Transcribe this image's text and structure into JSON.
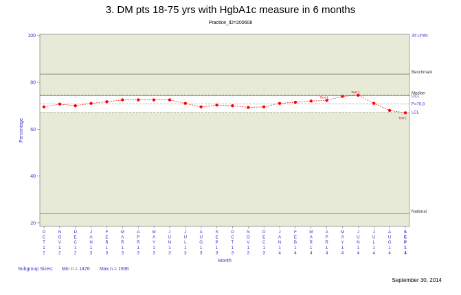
{
  "title": "3. DM pts 18-75 yrs with HgbA1c measure in 6 months",
  "subtitle": "Practice_ID=200608",
  "footer": {
    "subgroup_label": "Subgroup Sizes:",
    "min_n": "Min n = 1476",
    "max_n": "Max n = 1936",
    "date": "September 30, 2014"
  },
  "colors": {
    "band": "#e6ead6",
    "axis_text": "#3333cc",
    "point": "#ff0000",
    "line": "#ff0000",
    "ref_line": "#808080"
  },
  "chart_data": {
    "type": "line",
    "xlabel": "Month",
    "ylabel": "Percentage",
    "ylim": [
      20,
      100
    ],
    "yticks": [
      20,
      40,
      60,
      80,
      100
    ],
    "categories": [
      "OCT12",
      "NOV12",
      "DEC12",
      "JAN13",
      "FEB13",
      "MAR13",
      "APR13",
      "MAY13",
      "JUN13",
      "JUL13",
      "AUG13",
      "SEP13",
      "OCT13",
      "NOV13",
      "DEC13",
      "JAN14",
      "FEB14",
      "MAR14",
      "APR14",
      "MAY14",
      "JUN14",
      "JUL14",
      "AUG14",
      "SEP14"
    ],
    "tick_labels": [
      [
        "O",
        "C",
        "T",
        "1",
        "2"
      ],
      [
        "N",
        "O",
        "V",
        "1",
        "2"
      ],
      [
        "D",
        "E",
        "C",
        "1",
        "2"
      ],
      [
        "J",
        "A",
        "N",
        "1",
        "3"
      ],
      [
        "F",
        "E",
        "B",
        "1",
        "3"
      ],
      [
        "M",
        "A",
        "R",
        "1",
        "3"
      ],
      [
        "A",
        "P",
        "R",
        "1",
        "3"
      ],
      [
        "M",
        "A",
        "Y",
        "1",
        "3"
      ],
      [
        "J",
        "U",
        "N",
        "1",
        "3"
      ],
      [
        "J",
        "U",
        "L",
        "1",
        "3"
      ],
      [
        "A",
        "U",
        "G",
        "1",
        "3"
      ],
      [
        "S",
        "E",
        "P",
        "1",
        "3"
      ],
      [
        "O",
        "C",
        "T",
        "1",
        "3"
      ],
      [
        "N",
        "O",
        "V",
        "1",
        "3"
      ],
      [
        "D",
        "E",
        "C",
        "1",
        "3"
      ],
      [
        "J",
        "A",
        "N",
        "1",
        "4"
      ],
      [
        "F",
        "E",
        "B",
        "1",
        "4"
      ],
      [
        "M",
        "A",
        "R",
        "1",
        "4"
      ],
      [
        "A",
        "P",
        "R",
        "1",
        "4"
      ],
      [
        "M",
        "A",
        "Y",
        "1",
        "4"
      ],
      [
        "J",
        "U",
        "N",
        "1",
        "4"
      ],
      [
        "J",
        "U",
        "L",
        "1",
        "4"
      ],
      [
        "A",
        "U",
        "G",
        "1",
        "4"
      ],
      [
        "S",
        "E",
        "P",
        "1",
        "4"
      ]
    ],
    "series": [
      {
        "values": [
          69.5,
          70.7,
          70.0,
          71.0,
          71.7,
          72.5,
          72.5,
          72.5,
          72.5,
          71.0,
          69.5,
          70.3,
          70.0,
          69.3,
          69.5,
          71.0,
          71.5,
          72.0,
          72.3,
          74.0,
          74.5,
          71.0,
          68.0,
          67.0
        ]
      }
    ],
    "limits": {
      "ucl": 74.5,
      "center": 70.8,
      "lcl": 67.2,
      "limit_3d": 100,
      "benchmark": 83.5,
      "median": 74.3,
      "national": 24
    },
    "right_labels": {
      "limit_3d": "3d Limits",
      "benchmark": "Benchmark",
      "median": "Median",
      "ucl": "UCL",
      "center": "P=70.8",
      "lcl": "LCL",
      "national": "National"
    },
    "annotations": [
      {
        "index": 18,
        "text": "Test 1"
      },
      {
        "index": 20,
        "text": "Test 1"
      },
      {
        "index": 23,
        "text": "Test 1"
      }
    ]
  }
}
